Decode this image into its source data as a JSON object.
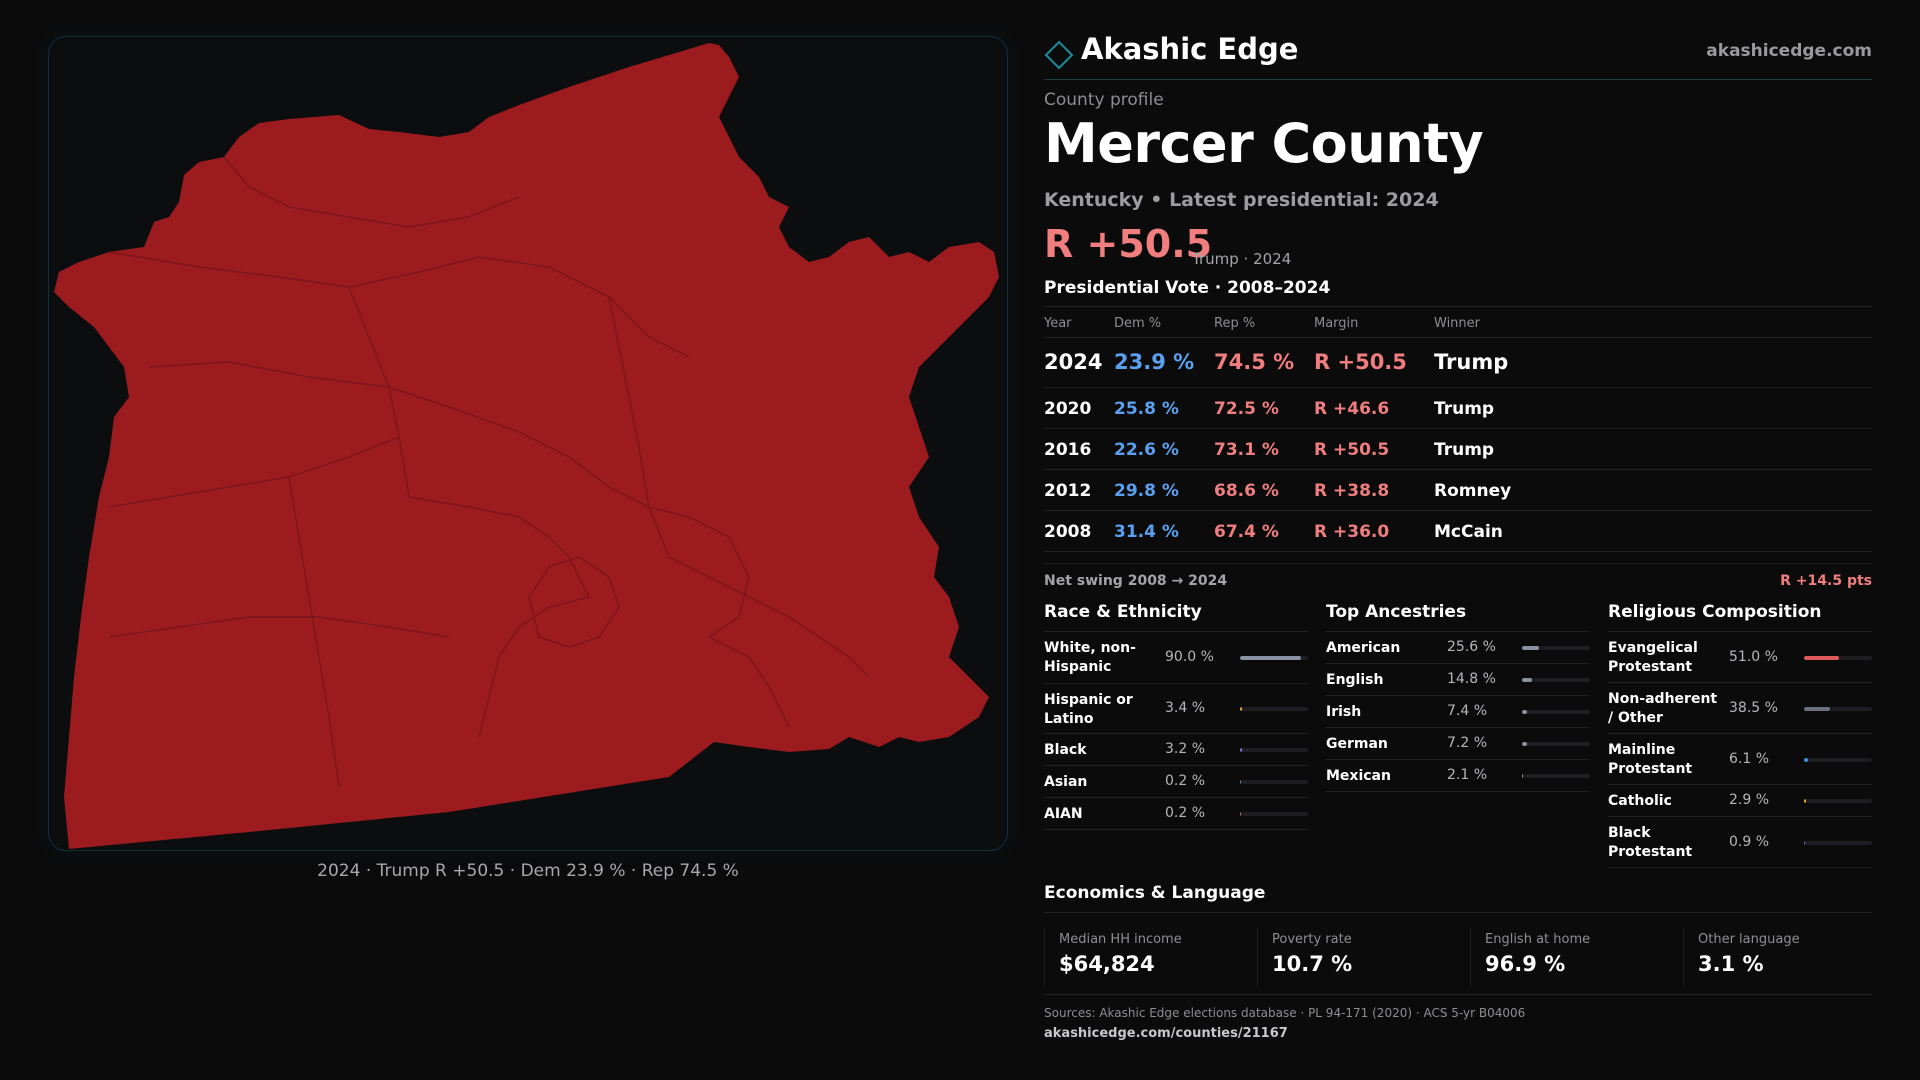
{
  "map": {
    "fill_color": "#9b1b1f",
    "boundary_color": "#7c1519",
    "caption": "2024 · Trump R +50.5 · Dem 23.9 % · Rep 74.5 %"
  },
  "brand": {
    "name": "Akashic Edge",
    "url": "akashicedge.com",
    "logo_icon": "diamond-icon",
    "accent": "#1a8a9a"
  },
  "profile": {
    "eyebrow": "County profile",
    "county": "Mercer County",
    "subtitle": "Kentucky • Latest presidential: 2024",
    "headline_margin": "R +50.5",
    "headline_note": "Trump · 2024"
  },
  "colors": {
    "dem": "#5aa0f0",
    "rep": "#f07e7e"
  },
  "vote": {
    "title": "Presidential Vote · 2008–2024",
    "headers": {
      "year": "Year",
      "dem": "Dem %",
      "rep": "Rep %",
      "margin": "Margin",
      "winner": "Winner"
    },
    "rows": [
      {
        "year": "2024",
        "dem": "23.9 %",
        "rep": "74.5 %",
        "margin": "R +50.5",
        "winner": "Trump"
      },
      {
        "year": "2020",
        "dem": "25.8 %",
        "rep": "72.5 %",
        "margin": "R +46.6",
        "winner": "Trump"
      },
      {
        "year": "2016",
        "dem": "22.6 %",
        "rep": "73.1 %",
        "margin": "R +50.5",
        "winner": "Trump"
      },
      {
        "year": "2012",
        "dem": "29.8 %",
        "rep": "68.6 %",
        "margin": "R +38.8",
        "winner": "Romney"
      },
      {
        "year": "2008",
        "dem": "31.4 %",
        "rep": "67.4 %",
        "margin": "R +36.0",
        "winner": "McCain"
      }
    ],
    "swing_label": "Net swing 2008 → 2024",
    "swing_value": "R +14.5 pts"
  },
  "race": {
    "title": "Race & Ethnicity",
    "items": [
      {
        "label": "White, non-Hispanic",
        "value": "90.0 %",
        "pct": 90.0,
        "color": "#8a93a3"
      },
      {
        "label": "Hispanic or Latino",
        "value": "3.4 %",
        "pct": 3.4,
        "color": "#d9a441"
      },
      {
        "label": "Black",
        "value": "3.2 %",
        "pct": 3.2,
        "color": "#7b6fd6"
      },
      {
        "label": "Asian",
        "value": "0.2 %",
        "pct": 0.2,
        "color": "#4aa3a0"
      },
      {
        "label": "AIAN",
        "value": "0.2 %",
        "pct": 0.2,
        "color": "#c47a4a"
      }
    ]
  },
  "ancestry": {
    "title": "Top Ancestries",
    "items": [
      {
        "label": "American",
        "value": "25.6 %",
        "pct": 25.6,
        "color": "#8a93a3"
      },
      {
        "label": "English",
        "value": "14.8 %",
        "pct": 14.8,
        "color": "#8a93a3"
      },
      {
        "label": "Irish",
        "value": "7.4 %",
        "pct": 7.4,
        "color": "#8a93a3"
      },
      {
        "label": "German",
        "value": "7.2 %",
        "pct": 7.2,
        "color": "#8a93a3"
      },
      {
        "label": "Mexican",
        "value": "2.1 %",
        "pct": 2.1,
        "color": "#d9a441"
      }
    ]
  },
  "religion": {
    "title": "Religious Composition",
    "items": [
      {
        "label": "Evangelical Protestant",
        "value": "51.0 %",
        "pct": 51.0,
        "color": "#e05a5a"
      },
      {
        "label": "Non-adherent / Other",
        "value": "38.5 %",
        "pct": 38.5,
        "color": "#6b7180"
      },
      {
        "label": "Mainline Protestant",
        "value": "6.1 %",
        "pct": 6.1,
        "color": "#4a8fe0"
      },
      {
        "label": "Catholic",
        "value": "2.9 %",
        "pct": 2.9,
        "color": "#d9a441"
      },
      {
        "label": "Black Protestant",
        "value": "0.9 %",
        "pct": 0.9,
        "color": "#7b6fd6"
      }
    ]
  },
  "economics": {
    "title": "Economics & Language",
    "items": [
      {
        "label": "Median HH income",
        "value": "$64,824"
      },
      {
        "label": "Poverty rate",
        "value": "10.7 %"
      },
      {
        "label": "English at home",
        "value": "96.9 %"
      },
      {
        "label": "Other language",
        "value": "3.1 %"
      }
    ]
  },
  "footer": {
    "sources": "Sources: Akashic Edge elections database · PL 94-171 (2020) · ACS 5-yr B04006",
    "url": "akashicedge.com/counties/21167"
  }
}
